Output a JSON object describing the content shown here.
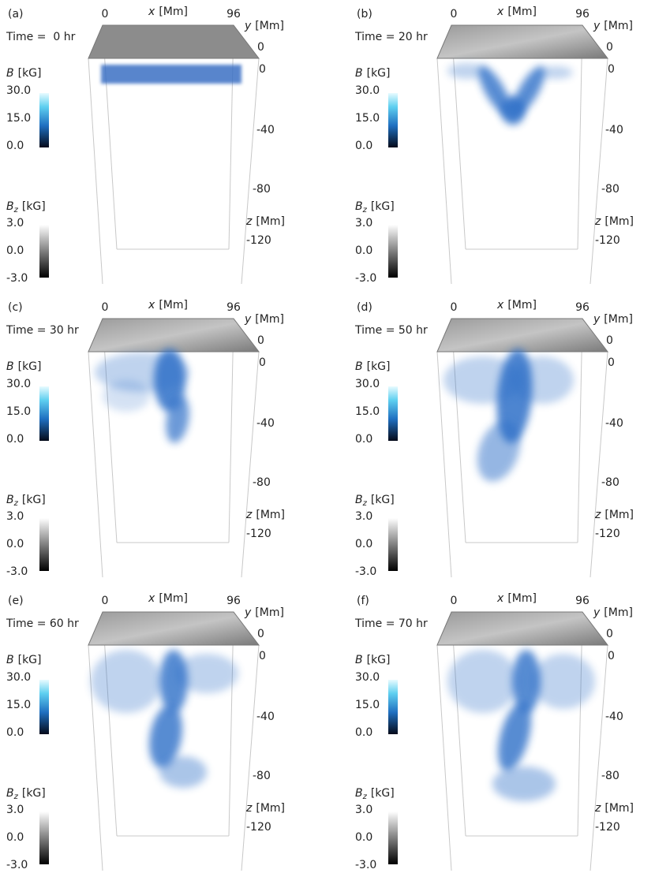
{
  "panels": [
    {
      "label": "(a)",
      "time": "Time =  0 hr"
    },
    {
      "label": "(b)",
      "time": "Time = 20 hr"
    },
    {
      "label": "(c)",
      "time": "Time = 30 hr"
    },
    {
      "label": "(d)",
      "time": "Time = 50 hr"
    },
    {
      "label": "(e)",
      "time": "Time = 60 hr"
    },
    {
      "label": "(f)",
      "time": "Time = 70 hr"
    }
  ],
  "axes": {
    "x_symbol": "x",
    "x_unit": "[Mm]",
    "x_start": "0",
    "x_end": "96",
    "y_symbol": "y",
    "y_unit": "[Mm]",
    "y_tick": "0",
    "z_symbol": "z",
    "z_unit": "[Mm]",
    "z_ticks": [
      "0",
      "-40",
      "-80",
      "-120"
    ]
  },
  "colorbars": {
    "b": {
      "symbol": "B",
      "unit": "[kG]",
      "ticks": [
        "30.0",
        "15.0",
        "0.0"
      ]
    },
    "bz": {
      "symbol": "B",
      "subscript": "z",
      "unit": "[kG]",
      "ticks": [
        "3.0",
        "0.0",
        "-3.0"
      ]
    }
  }
}
